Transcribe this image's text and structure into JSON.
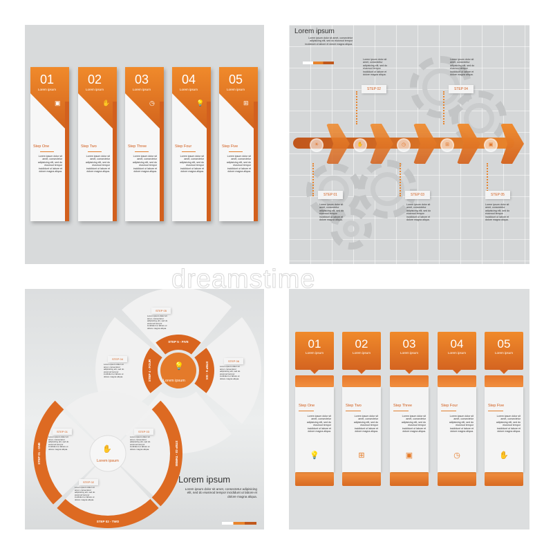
{
  "lorem_short": "Lorem ipsum dolor sit amet, consectetur adipisicing elit, sed do eiusmod tempor incididunt ut labore et dolore magna aliqua.",
  "colors": {
    "accent": "#e8782a",
    "accent_dark": "#c9561a",
    "panel": "#d8dadb"
  },
  "watermark": "dreamstime",
  "panel1": {
    "cards": [
      {
        "num": "01",
        "sub": "Lorem ipsum",
        "step": "Step One",
        "icon": "money-icon",
        "glyph": "▣"
      },
      {
        "num": "02",
        "sub": "Lorem ipsum",
        "step": "Step Two",
        "icon": "hand-coin-icon",
        "glyph": "✋"
      },
      {
        "num": "03",
        "sub": "Lorem ipsum",
        "step": "Step Three",
        "icon": "clock-icon",
        "glyph": "◷"
      },
      {
        "num": "04",
        "sub": "Lorem ipsum",
        "step": "Step Four",
        "icon": "lightbulb-icon",
        "glyph": "💡"
      },
      {
        "num": "05",
        "sub": "Lorem ipsum",
        "step": "Step Five",
        "icon": "sitemap-icon",
        "glyph": "⊞"
      }
    ]
  },
  "panel2": {
    "title": "Lorem ipsum",
    "steps": [
      "STEP 01",
      "STEP 02",
      "STEP 03",
      "STEP 04",
      "STEP 05"
    ],
    "icons": [
      {
        "name": "lightbulb-icon",
        "glyph": "☀"
      },
      {
        "name": "hand-coin-icon",
        "glyph": "✋"
      },
      {
        "name": "clock-icon",
        "glyph": "◷"
      },
      {
        "name": "sitemap-icon",
        "glyph": "⊞"
      },
      {
        "name": "money-icon",
        "glyph": "▣"
      }
    ]
  },
  "panel3": {
    "center_top": "Lorem ipsum",
    "center_bottom": "Lorem ipsum",
    "steps": [
      "STEP 01",
      "STEP 02",
      "STEP 03",
      "STEP 04",
      "STEP 05",
      "STEP 06"
    ],
    "ring_labels": [
      "STEP 01 - ONE",
      "STEP 02 - TWO",
      "STEP 03 - THREE",
      "STEP 4 - FOUR",
      "STEP 5 - FIVE",
      "STEP 6 - SIX"
    ],
    "title": "Lorem ipsum",
    "body": "Lorem ipsum dolor sit amet, consectetur adipisicing elit, sed do eiusmod tempor incididunt ut labore et dolore magna aliqua."
  },
  "panel4": {
    "cards": [
      {
        "num": "01",
        "sub": "Lorem ipsum",
        "step": "Step One",
        "icon": "lightbulb-icon",
        "glyph": "💡"
      },
      {
        "num": "02",
        "sub": "Lorem ipsum",
        "step": "Step Two",
        "icon": "sitemap-icon",
        "glyph": "⊞"
      },
      {
        "num": "03",
        "sub": "Lorem ipsum",
        "step": "Step Three",
        "icon": "money-icon",
        "glyph": "▣"
      },
      {
        "num": "04",
        "sub": "Lorem ipsum",
        "step": "Step Four",
        "icon": "clock-icon",
        "glyph": "◷"
      },
      {
        "num": "05",
        "sub": "Lorem ipsum",
        "step": "Step Five",
        "icon": "hand-coin-icon",
        "glyph": "✋"
      }
    ]
  }
}
